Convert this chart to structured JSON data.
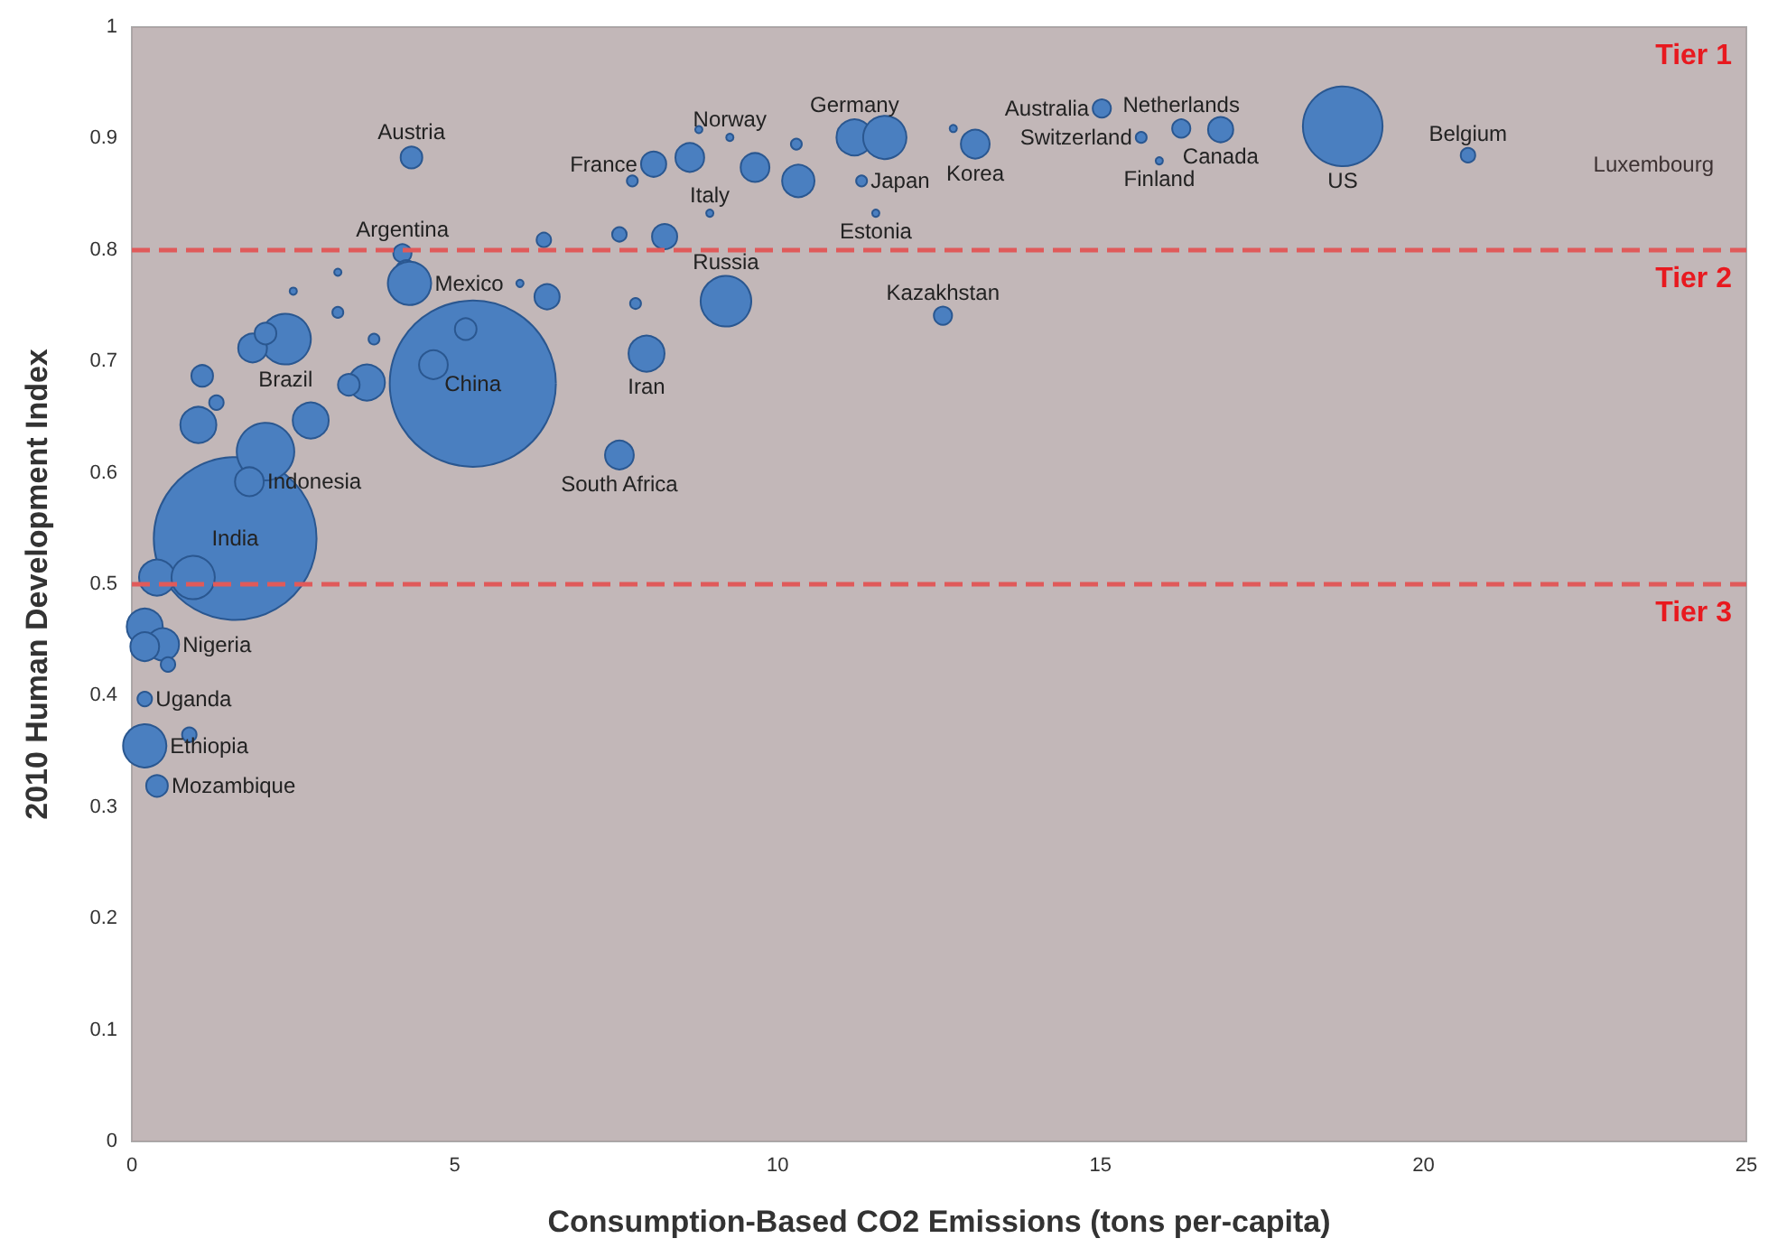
{
  "chart_data": {
    "type": "bubble",
    "xlabel": "Consumption-Based CO2 Emissions (tons per-capita)",
    "ylabel": "2010 Human Development Index",
    "xlim": [
      0,
      25
    ],
    "xticks": [
      0,
      5,
      10,
      15,
      20,
      25
    ],
    "ylim": [
      0,
      1
    ],
    "yticks": [
      0,
      0.1,
      0.2,
      0.3,
      0.4,
      0.5,
      0.6,
      0.7,
      0.8,
      0.9,
      1
    ],
    "grid": false,
    "series": [
      {
        "color": "#4a7fc0",
        "x": [
          5.28,
          1.6,
          4.33,
          8.08,
          8.64,
          7.75,
          8.78,
          9.26,
          9.65,
          10.32,
          10.29,
          11.19,
          11.66,
          11.3,
          8.95,
          8.25,
          7.55,
          6.38,
          4.19,
          4.25,
          4.3,
          6.43,
          6.01,
          7.8,
          9.2,
          7.97,
          7.55,
          12.56,
          2.38,
          1.87,
          2.07,
          3.19,
          2.5,
          3.19,
          3.75,
          3.64,
          3.36,
          1.09,
          1.31,
          1.03,
          2.77,
          2.07,
          1.82,
          5.17,
          4.67,
          0.39,
          0.95,
          0.2,
          0.48,
          0.2,
          0.56,
          0.2,
          0.89,
          0.2,
          0.39,
          13.06,
          12.72,
          15.02,
          15.63,
          16.25,
          16.86,
          15.91,
          18.75,
          20.69,
          11.52
        ],
        "values": [
          0.68,
          0.541,
          0.883,
          0.877,
          0.883,
          0.862,
          0.908,
          0.901,
          0.874,
          0.862,
          0.895,
          0.901,
          0.901,
          0.862,
          0.833,
          0.812,
          0.814,
          0.809,
          0.797,
          0.781,
          0.77,
          0.758,
          0.77,
          0.752,
          0.754,
          0.707,
          0.616,
          0.741,
          0.72,
          0.712,
          0.725,
          0.78,
          0.763,
          0.744,
          0.72,
          0.681,
          0.679,
          0.687,
          0.663,
          0.643,
          0.647,
          0.619,
          0.592,
          0.729,
          0.697,
          0.506,
          0.506,
          0.462,
          0.446,
          0.444,
          0.428,
          0.397,
          0.365,
          0.355,
          0.319,
          0.895,
          0.909,
          0.927,
          0.901,
          0.909,
          0.908,
          0.88,
          0.911,
          0.885,
          0.833
        ],
        "sizes": [
          1,
          0.96,
          0.017,
          0.023,
          0.03,
          0.0043,
          0.0019,
          0.0019,
          0.03,
          0.038,
          0.0043,
          0.047,
          0.068,
          0.0043,
          0.0019,
          0.023,
          0.0076,
          0.0076,
          0.012,
          0.017,
          0.068,
          0.023,
          0.0019,
          0.0043,
          0.093,
          0.047,
          0.03,
          0.012,
          0.093,
          0.03,
          0.017,
          0.0019,
          0.0019,
          0.0043,
          0.0043,
          0.047,
          0.017,
          0.017,
          0.0076,
          0.047,
          0.047,
          0.12,
          0.03,
          0.017,
          0.03,
          0.047,
          0.068,
          0.047,
          0.038,
          0.03,
          0.0076,
          0.0076,
          0.0076,
          0.068,
          0.017,
          0.03,
          0.0019,
          0.012,
          0.0043,
          0.012,
          0.023,
          0.0019,
          0.23,
          0.0076,
          0.0019
        ]
      }
    ],
    "ref_lines": [
      {
        "axis": "y",
        "value": 0.8,
        "color": "#e05a5a",
        "line_style": "dashed"
      },
      {
        "axis": "y",
        "value": 0.5,
        "color": "#e05a5a",
        "line_style": "dashed"
      }
    ],
    "bands": [
      {
        "axis": "y",
        "from": 0.8,
        "to": 1,
        "label": "Tier 1",
        "color": "#e8191f"
      },
      {
        "axis": "y",
        "from": 0.5,
        "to": 0.8,
        "label": "Tier 2",
        "color": "#e8191f"
      },
      {
        "axis": "y",
        "from": 0,
        "to": 0.5,
        "label": "Tier 3",
        "color": "#e8191f"
      }
    ],
    "annotations": [
      {
        "text": "Norway",
        "x": 9.26,
        "y": 0.901
      },
      {
        "text": "Germany",
        "x": 11.19,
        "y": 0.901
      },
      {
        "text": "Australia",
        "x": 15.02,
        "y": 0.927
      },
      {
        "text": "Netherlands",
        "x": 16.25,
        "y": 0.909
      },
      {
        "text": "US",
        "x": 18.75,
        "y": 0.911
      },
      {
        "text": "Austria",
        "x": 4.33,
        "y": 0.883
      },
      {
        "text": "France",
        "x": 8.08,
        "y": 0.877
      },
      {
        "text": "Japan",
        "x": 11.3,
        "y": 0.862
      },
      {
        "text": "Korea",
        "x": 13.06,
        "y": 0.895
      },
      {
        "text": "Switzerland",
        "x": 15.63,
        "y": 0.901
      },
      {
        "text": "Canada",
        "x": 16.86,
        "y": 0.908
      },
      {
        "text": "Finland",
        "x": 15.91,
        "y": 0.88
      },
      {
        "text": "Belgium",
        "x": 20.69,
        "y": 0.885
      },
      "Luxembourg",
      {
        "text": "Italy",
        "x": 8.95,
        "y": 0.833
      },
      {
        "text": "Estonia",
        "x": 11.52,
        "y": 0.833
      },
      {
        "text": "Argentina",
        "x": 4.19,
        "y": 0.797
      },
      {
        "text": "Mexico",
        "x": 4.3,
        "y": 0.77
      },
      {
        "text": "Brazil",
        "x": 2.38,
        "y": 0.72
      },
      {
        "text": "Russia",
        "x": 9.2,
        "y": 0.754
      },
      {
        "text": "Kazakhstan",
        "x": 12.56,
        "y": 0.741
      },
      {
        "text": "Iran",
        "x": 7.97,
        "y": 0.707
      },
      {
        "text": "Indonesia",
        "x": 1.82,
        "y": 0.592
      },
      {
        "text": "China",
        "x": 5.28,
        "y": 0.68
      },
      {
        "text": "South Africa",
        "x": 7.55,
        "y": 0.616
      },
      {
        "text": "India",
        "x": 1.6,
        "y": 0.541
      },
      {
        "text": "Nigeria",
        "x": 0.48,
        "y": 0.446
      },
      {
        "text": "Uganda",
        "x": 0.2,
        "y": 0.397
      },
      {
        "text": "Ethiopia",
        "x": 0.2,
        "y": 0.355
      },
      {
        "text": "Mozambique",
        "x": 0.39,
        "y": 0.319
      }
    ]
  }
}
